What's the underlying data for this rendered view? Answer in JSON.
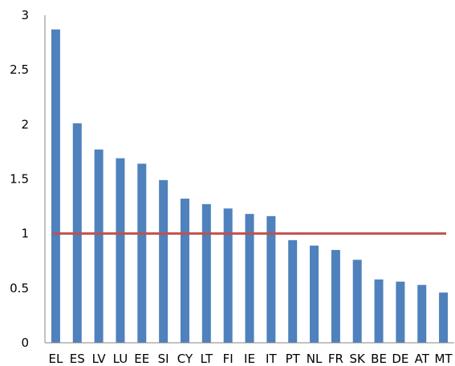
{
  "chart_data": {
    "type": "bar",
    "categories": [
      "EL",
      "ES",
      "LV",
      "LU",
      "EE",
      "SI",
      "CY",
      "LT",
      "FI",
      "IE",
      "IT",
      "PT",
      "NL",
      "FR",
      "SK",
      "BE",
      "DE",
      "AT",
      "MT"
    ],
    "series": [
      {
        "values": [
          2.87,
          2.01,
          1.77,
          1.69,
          1.64,
          1.49,
          1.32,
          1.27,
          1.23,
          1.18,
          1.16,
          0.94,
          0.89,
          0.85,
          0.76,
          0.58,
          0.56,
          0.53,
          0.46
        ],
        "color": "#4f81bd"
      }
    ],
    "reference_line": {
      "value": 1,
      "color": "#c0504d"
    },
    "ylim": [
      0,
      3
    ],
    "yticks": [
      0,
      0.5,
      1,
      1.5,
      2,
      2.5,
      3
    ],
    "ytick_labels": [
      "0",
      "0.5",
      "1",
      "1.5",
      "2",
      "2.5",
      "3"
    ],
    "title": "",
    "xlabel": "",
    "ylabel": "",
    "grid": false,
    "legend": "none"
  }
}
